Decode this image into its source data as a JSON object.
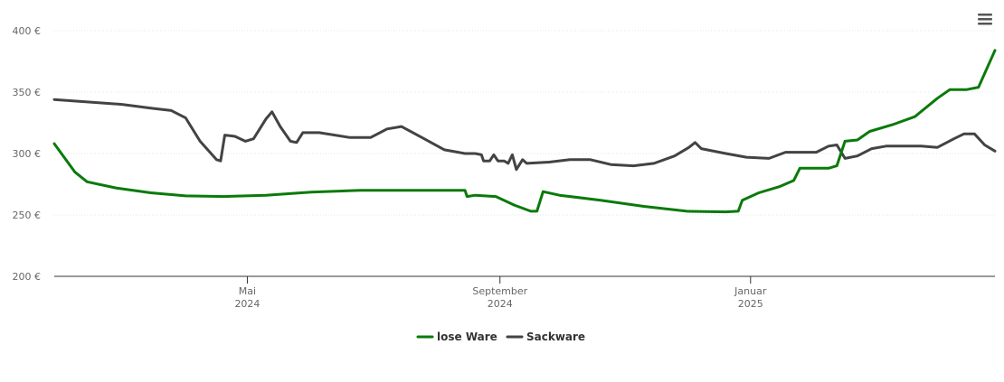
{
  "chart_data": {
    "type": "line",
    "title": "",
    "xlabel": "",
    "ylabel": "",
    "ylim": [
      200,
      400
    ],
    "y_ticks": [
      "200 €",
      "250 €",
      "300 €",
      "350 €",
      "400 €"
    ],
    "y_tick_values": [
      200,
      250,
      300,
      350,
      400
    ],
    "x_ticks": [
      {
        "month": "Mai",
        "year": "2024",
        "date": "2024-05-01"
      },
      {
        "month": "September",
        "year": "2024",
        "date": "2024-09-01"
      },
      {
        "month": "Januar",
        "year": "2025",
        "date": "2025-01-01"
      }
    ],
    "xlim": [
      "2024-01-28",
      "2025-04-30"
    ],
    "grid": true,
    "legend_position": "bottom-center",
    "series": [
      {
        "name": "lose Ware",
        "color": "#0a7a0a",
        "points": [
          [
            "2024-01-28",
            308
          ],
          [
            "2024-02-07",
            285
          ],
          [
            "2024-02-13",
            277
          ],
          [
            "2024-02-27",
            272
          ],
          [
            "2024-03-15",
            268
          ],
          [
            "2024-04-01",
            265.5
          ],
          [
            "2024-04-20",
            265
          ],
          [
            "2024-05-10",
            266
          ],
          [
            "2024-06-01",
            268.5
          ],
          [
            "2024-06-25",
            270
          ],
          [
            "2024-07-15",
            270
          ],
          [
            "2024-08-10",
            270
          ],
          [
            "2024-08-15",
            270
          ],
          [
            "2024-08-16",
            265
          ],
          [
            "2024-08-20",
            266
          ],
          [
            "2024-08-30",
            265
          ],
          [
            "2024-09-08",
            258
          ],
          [
            "2024-09-16",
            253
          ],
          [
            "2024-09-19",
            253
          ],
          [
            "2024-09-22",
            269
          ],
          [
            "2024-09-30",
            266
          ],
          [
            "2024-10-20",
            262
          ],
          [
            "2024-11-10",
            257
          ],
          [
            "2024-12-01",
            253
          ],
          [
            "2024-12-20",
            252.5
          ],
          [
            "2024-12-26",
            253
          ],
          [
            "2024-12-28",
            262
          ],
          [
            "2025-01-05",
            268
          ],
          [
            "2025-01-15",
            273
          ],
          [
            "2025-01-22",
            278
          ],
          [
            "2025-01-25",
            288
          ],
          [
            "2025-02-08",
            288
          ],
          [
            "2025-02-12",
            290
          ],
          [
            "2025-02-16",
            310
          ],
          [
            "2025-02-22",
            311
          ],
          [
            "2025-02-28",
            318
          ],
          [
            "2025-03-12",
            324
          ],
          [
            "2025-03-22",
            330
          ],
          [
            "2025-04-02",
            345
          ],
          [
            "2025-04-08",
            352
          ],
          [
            "2025-04-16",
            352
          ],
          [
            "2025-04-22",
            354
          ],
          [
            "2025-04-30",
            384
          ]
        ]
      },
      {
        "name": "Sackware",
        "color": "#434343",
        "points": [
          [
            "2024-01-28",
            344
          ],
          [
            "2024-03-01",
            340
          ],
          [
            "2024-03-15",
            337
          ],
          [
            "2024-03-25",
            335
          ],
          [
            "2024-04-01",
            329
          ],
          [
            "2024-04-08",
            310
          ],
          [
            "2024-04-16",
            295
          ],
          [
            "2024-04-18",
            294
          ],
          [
            "2024-04-20",
            315
          ],
          [
            "2024-04-25",
            314
          ],
          [
            "2024-04-30",
            310
          ],
          [
            "2024-05-04",
            312
          ],
          [
            "2024-05-10",
            328
          ],
          [
            "2024-05-13",
            334
          ],
          [
            "2024-05-17",
            322
          ],
          [
            "2024-05-22",
            310
          ],
          [
            "2024-05-25",
            309
          ],
          [
            "2024-05-28",
            317
          ],
          [
            "2024-06-05",
            317
          ],
          [
            "2024-06-20",
            313
          ],
          [
            "2024-06-30",
            313
          ],
          [
            "2024-07-08",
            320
          ],
          [
            "2024-07-15",
            322
          ],
          [
            "2024-07-25",
            313
          ],
          [
            "2024-08-05",
            303
          ],
          [
            "2024-08-15",
            300
          ],
          [
            "2024-08-20",
            300
          ],
          [
            "2024-08-23",
            299
          ],
          [
            "2024-08-24",
            294
          ],
          [
            "2024-08-27",
            294
          ],
          [
            "2024-08-29",
            299
          ],
          [
            "2024-08-31",
            294
          ],
          [
            "2024-09-03",
            294
          ],
          [
            "2024-09-05",
            292
          ],
          [
            "2024-09-07",
            299
          ],
          [
            "2024-09-09",
            287
          ],
          [
            "2024-09-12",
            295
          ],
          [
            "2024-09-14",
            292
          ],
          [
            "2024-09-25",
            293
          ],
          [
            "2024-10-05",
            295
          ],
          [
            "2024-10-15",
            295
          ],
          [
            "2024-10-25",
            291
          ],
          [
            "2024-11-05",
            290
          ],
          [
            "2024-11-15",
            292
          ],
          [
            "2024-11-25",
            298
          ],
          [
            "2024-12-02",
            305
          ],
          [
            "2024-12-05",
            309
          ],
          [
            "2024-12-08",
            304
          ],
          [
            "2024-12-20",
            300
          ],
          [
            "2024-12-30",
            297
          ],
          [
            "2025-01-10",
            296
          ],
          [
            "2025-01-18",
            301
          ],
          [
            "2025-01-28",
            301
          ],
          [
            "2025-02-02",
            301
          ],
          [
            "2025-02-08",
            306
          ],
          [
            "2025-02-12",
            307
          ],
          [
            "2025-02-16",
            296
          ],
          [
            "2025-02-22",
            298
          ],
          [
            "2025-03-01",
            304
          ],
          [
            "2025-03-08",
            306
          ],
          [
            "2025-03-25",
            306
          ],
          [
            "2025-04-02",
            305
          ],
          [
            "2025-04-10",
            312
          ],
          [
            "2025-04-15",
            316
          ],
          [
            "2025-04-20",
            316
          ],
          [
            "2025-04-25",
            307
          ],
          [
            "2025-04-30",
            302
          ]
        ]
      }
    ]
  },
  "ui": {
    "menu_icon": "hamburger-menu-icon"
  }
}
